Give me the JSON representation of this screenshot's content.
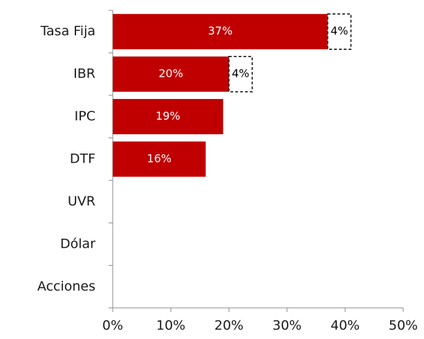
{
  "chart_data": {
    "type": "hbar-stacked",
    "categories": [
      "Tasa Fija",
      "IBR",
      "IPC",
      "DTF",
      "UVR",
      "Dólar",
      "Acciones"
    ],
    "series": [
      {
        "color": "#c00000",
        "label_color": "#ffffff",
        "values": [
          37,
          20,
          19,
          16,
          null,
          null,
          null
        ],
        "value_labels": [
          "37%",
          "20%",
          "19%",
          "16%",
          null,
          null,
          null
        ]
      },
      {
        "color": "#ffffff",
        "label_color": "#000000",
        "border": "dashed",
        "values": [
          4,
          4,
          null,
          null,
          null,
          null,
          null
        ],
        "value_labels": [
          "4%",
          "4%",
          null,
          null,
          null,
          null,
          null
        ]
      }
    ],
    "xlim": [
      0,
      50
    ],
    "xticks": [
      {
        "value": 0,
        "label": "0%"
      },
      {
        "value": 10,
        "label": "10%"
      },
      {
        "value": 20,
        "label": "20%"
      },
      {
        "value": 30,
        "label": "30%"
      },
      {
        "value": 40,
        "label": "40%"
      },
      {
        "value": 50,
        "label": "50%"
      }
    ]
  }
}
